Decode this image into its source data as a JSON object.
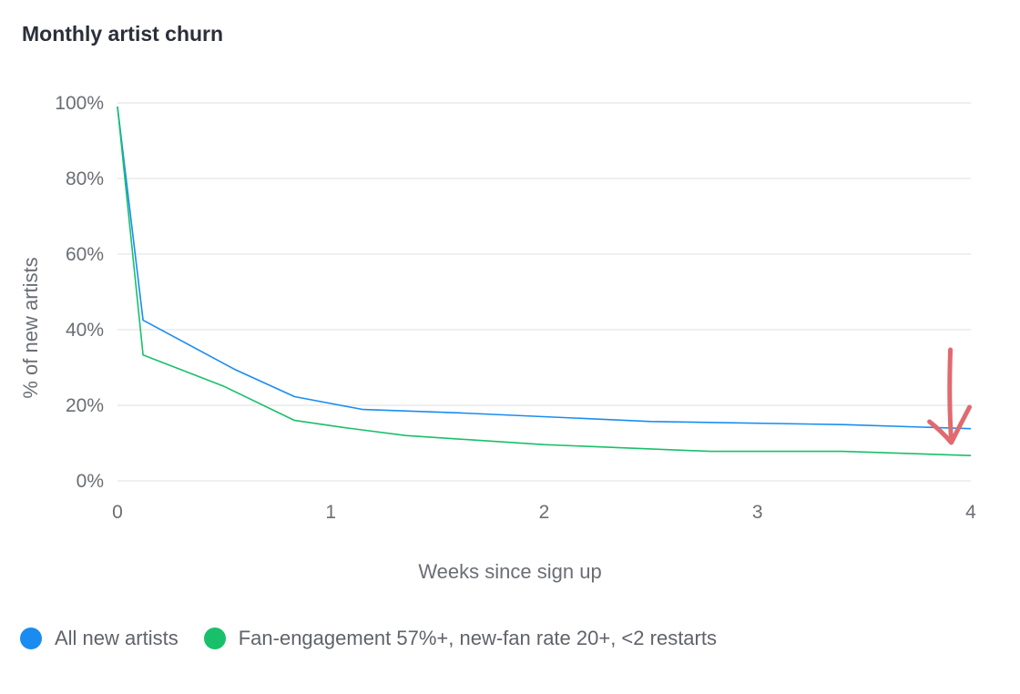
{
  "chart_data": {
    "type": "line",
    "title": "Monthly artist churn",
    "xlabel": "Weeks since sign up",
    "ylabel": "% of new artists",
    "xlim": [
      0,
      4
    ],
    "ylim": [
      0,
      100
    ],
    "x_ticks": [
      {
        "value": 0,
        "label": "0"
      },
      {
        "value": 1,
        "label": "1"
      },
      {
        "value": 2,
        "label": "2"
      },
      {
        "value": 3,
        "label": "3"
      },
      {
        "value": 4,
        "label": "4"
      }
    ],
    "y_ticks": [
      {
        "value": 0,
        "label": "0%"
      },
      {
        "value": 20,
        "label": "20%"
      },
      {
        "value": 40,
        "label": "40%"
      },
      {
        "value": 60,
        "label": "60%"
      },
      {
        "value": 80,
        "label": "80%"
      },
      {
        "value": 100,
        "label": "100%"
      }
    ],
    "grid": "horizontal",
    "legend_position": "bottom-left",
    "series": [
      {
        "name": "All new artists",
        "color": "#1a8cf0",
        "points": [
          [
            0,
            99
          ],
          [
            0.12,
            42.5
          ],
          [
            0.55,
            29.5
          ],
          [
            0.83,
            22.3
          ],
          [
            1.15,
            18.9
          ],
          [
            1.6,
            18
          ],
          [
            2.5,
            15.7
          ],
          [
            3.4,
            14.9
          ],
          [
            4,
            13.8
          ]
        ]
      },
      {
        "name": "Fan-engagement 57%+, new-fan rate 20+, <2  restarts",
        "color": "#18c06a",
        "points": [
          [
            0,
            99
          ],
          [
            0.12,
            33.3
          ],
          [
            0.5,
            25
          ],
          [
            0.83,
            16
          ],
          [
            1.05,
            14.2
          ],
          [
            1.35,
            12
          ],
          [
            2,
            9.6
          ],
          [
            2.78,
            7.8
          ],
          [
            3.4,
            7.8
          ],
          [
            4,
            6.7
          ]
        ]
      }
    ],
    "annotation": {
      "type": "arrow",
      "color": "#e06a6f",
      "x": 3.9
    }
  },
  "legend": {
    "items": [
      {
        "label": "All new artists",
        "color": "#1a8cf0"
      },
      {
        "label": "Fan-engagement 57%+, new-fan rate 20+, <2  restarts",
        "color": "#18c06a"
      }
    ]
  }
}
